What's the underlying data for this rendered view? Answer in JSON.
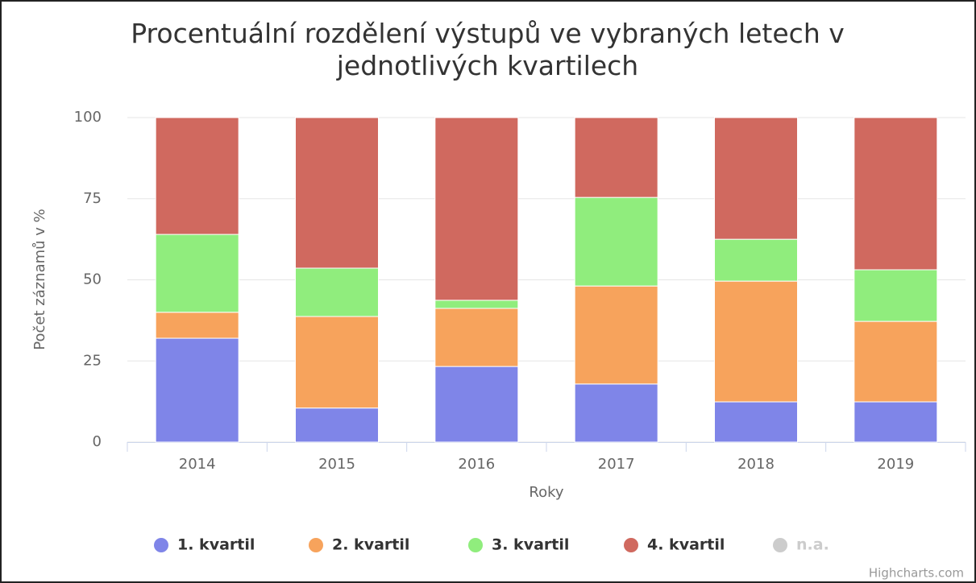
{
  "chart_data": {
    "type": "bar",
    "stacked": true,
    "title": "Procentuální rozdělení výstupů ve vybraných letech v jednotlivých kvartilech",
    "x_label": "Roky",
    "y_label": "Počet záznamů v %",
    "categories": [
      "2014",
      "2015",
      "2016",
      "2017",
      "2018",
      "2019"
    ],
    "series": [
      {
        "name": "1. kvartil",
        "color": "#7f85e8",
        "values": [
          32,
          10.5,
          23.3,
          17.9,
          12.4,
          12.4
        ]
      },
      {
        "name": "2. kvartil",
        "color": "#f7a35c",
        "values": [
          8,
          28.2,
          17.9,
          30.2,
          37.2,
          24.8
        ]
      },
      {
        "name": "3. kvartil",
        "color": "#90ed7d",
        "values": [
          24,
          14.9,
          2.5,
          27.3,
          12.9,
          15.9
        ]
      },
      {
        "name": "4. kvartil",
        "color": "#d0695f",
        "values": [
          36,
          46.4,
          56.3,
          24.6,
          37.5,
          46.9
        ]
      },
      {
        "name": "n.a.",
        "color": "#cccccc",
        "hidden": true,
        "values": [
          null,
          null,
          null,
          null,
          null,
          null
        ]
      }
    ],
    "ylim": [
      0,
      100
    ],
    "yticks": [
      0,
      25,
      50,
      75,
      100
    ],
    "grid": true,
    "credits": "Highcharts.com"
  }
}
